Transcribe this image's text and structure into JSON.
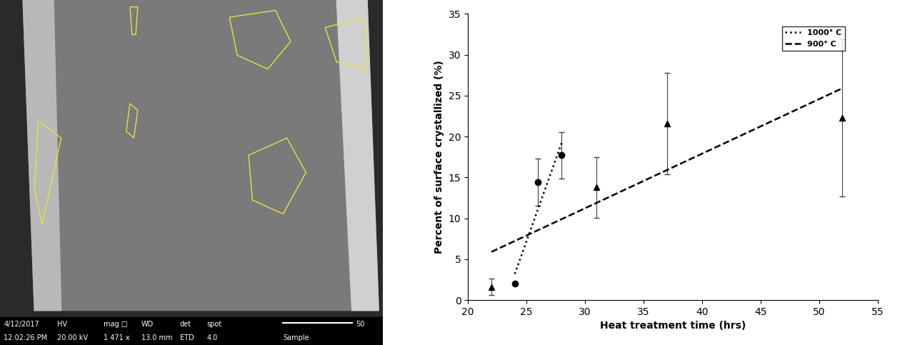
{
  "image_panel": {
    "info_bar": {
      "rows": [
        [
          "4/12/2017",
          "HV",
          "mag □",
          "WD",
          "det",
          "spot"
        ],
        [
          "12:02:26 PM",
          "20.00 kV",
          "1 471 x",
          "13.0 mm",
          "ETD",
          "4.0"
        ]
      ],
      "scale_bar": "50",
      "label": "Sample"
    }
  },
  "chart_data": {
    "type": "scatter",
    "x_label": "Heat treatment time (hrs)",
    "y_label": "Percent of surface crystallized (%)",
    "xlim": [
      20,
      55
    ],
    "xticks": [
      20,
      25,
      30,
      35,
      40,
      45,
      50,
      55
    ],
    "ylim": [
      0,
      35
    ],
    "yticks": [
      0,
      5,
      10,
      15,
      20,
      25,
      30,
      35
    ],
    "grid": false,
    "legend": "upper right",
    "series": [
      {
        "name": "1000° C",
        "color": "#000000",
        "marker": "circle",
        "line_style": "dotted",
        "x": [
          24,
          26,
          28
        ],
        "values": [
          2.0,
          14.4,
          17.7
        ],
        "error": [
          0.1,
          2.9,
          2.8
        ],
        "trendline": {
          "x": [
            24,
            28
          ],
          "values": [
            3.2,
            19.2
          ]
        }
      },
      {
        "name": "900° C",
        "color": "#000000",
        "marker": "triangle",
        "line_style": "dashed",
        "x": [
          22,
          31,
          37,
          52
        ],
        "values": [
          1.6,
          13.8,
          21.6,
          22.3
        ],
        "error": [
          1.0,
          3.7,
          6.2,
          9.6
        ],
        "trendline": {
          "x": [
            22,
            52
          ],
          "values": [
            5.9,
            25.9
          ]
        }
      }
    ]
  }
}
